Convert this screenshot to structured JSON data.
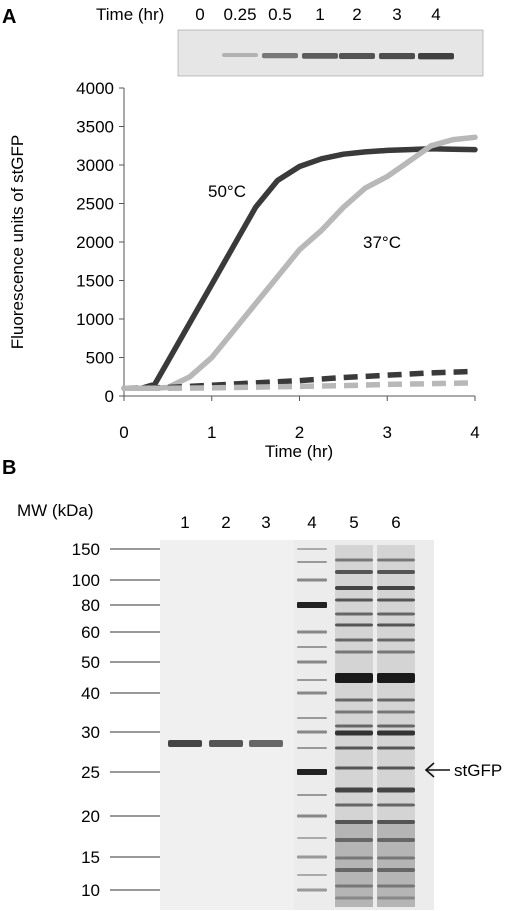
{
  "panel_a": {
    "label": "A",
    "blot": {
      "time_label": "Time (hr)",
      "time_points": [
        "0",
        "0.25",
        "0.5",
        "1",
        "2",
        "3",
        "4"
      ],
      "band_intensity": [
        0.0,
        0.25,
        0.55,
        0.7,
        0.75,
        0.78,
        0.85
      ]
    }
  },
  "chart_data": {
    "type": "line",
    "xlabel": "Time (hr)",
    "ylabel": "Fluorescence units of stGFP",
    "xlim": [
      0,
      4
    ],
    "ylim": [
      0,
      4000
    ],
    "xticks": [
      0,
      1,
      2,
      3,
      4
    ],
    "yticks": [
      0,
      500,
      1000,
      1500,
      2000,
      2500,
      3000,
      3500,
      4000
    ],
    "grid": false,
    "legend": "none",
    "annotations": [
      {
        "text": "50°C",
        "series": 0
      },
      {
        "text": "37°C",
        "series": 1
      }
    ],
    "series": [
      {
        "color": "#3a3a3a",
        "style": "solid",
        "x": [
          0,
          0.2,
          0.35,
          0.5,
          0.75,
          1.0,
          1.25,
          1.5,
          1.75,
          2.0,
          2.25,
          2.5,
          2.75,
          3.0,
          3.25,
          3.5,
          3.75,
          4.0
        ],
        "y": [
          100,
          100,
          150,
          450,
          950,
          1450,
          1950,
          2450,
          2800,
          2980,
          3080,
          3140,
          3170,
          3190,
          3200,
          3210,
          3205,
          3200
        ]
      },
      {
        "color": "#b8b8b8",
        "style": "solid",
        "x": [
          0,
          0.3,
          0.5,
          0.75,
          1.0,
          1.25,
          1.5,
          1.75,
          2.0,
          2.25,
          2.5,
          2.75,
          3.0,
          3.25,
          3.5,
          3.75,
          4.0
        ],
        "y": [
          100,
          100,
          110,
          250,
          500,
          850,
          1200,
          1550,
          1900,
          2150,
          2450,
          2700,
          2850,
          3050,
          3250,
          3330,
          3360
        ]
      },
      {
        "color": "#3a3a3a",
        "style": "dashed",
        "x": [
          0,
          0.5,
          1.0,
          1.5,
          2.0,
          2.5,
          3.0,
          3.5,
          4.0
        ],
        "y": [
          100,
          110,
          140,
          170,
          200,
          240,
          270,
          300,
          320
        ]
      },
      {
        "color": "#b8b8b8",
        "style": "dashed",
        "x": [
          0,
          0.5,
          1.0,
          1.5,
          2.0,
          2.5,
          3.0,
          3.5,
          4.0
        ],
        "y": [
          100,
          100,
          105,
          115,
          125,
          135,
          150,
          160,
          170
        ]
      }
    ]
  },
  "panel_b": {
    "label": "B",
    "mw_label": "MW (kDa)",
    "lanes": [
      "1",
      "2",
      "3",
      "4",
      "5",
      "6"
    ],
    "markers": [
      "150",
      "100",
      "80",
      "60",
      "50",
      "40",
      "30",
      "25",
      "20",
      "15",
      "10"
    ],
    "stgfp_label": "stGFP"
  }
}
